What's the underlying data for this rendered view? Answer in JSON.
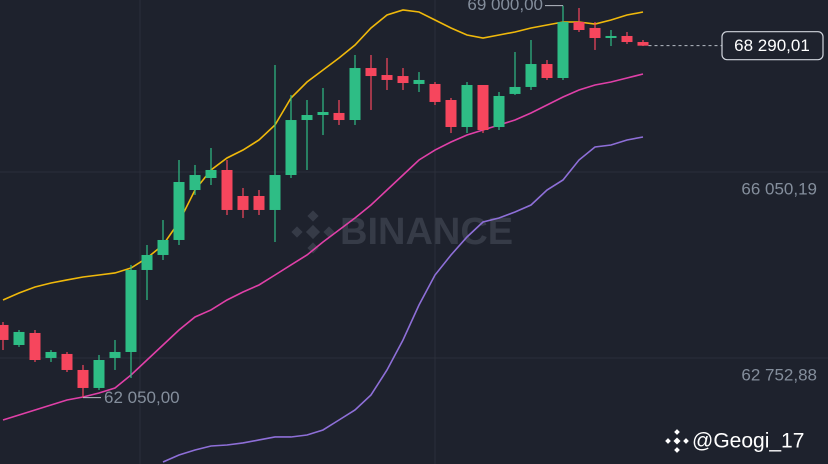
{
  "chart_data": {
    "type": "candlestick",
    "open": [
      63338,
      62983,
      63196,
      62753,
      62824,
      62540,
      62221,
      62753,
      62859,
      64313,
      64579,
      64845,
      65731,
      65944,
      66086,
      65625,
      65625,
      65377,
      65997,
      66972,
      67061,
      67097,
      66972,
      67894,
      67770,
      67752,
      67611,
      67611,
      67327,
      66848,
      67593,
      66848,
      67434,
      67558,
      67965,
      67717,
      68710,
      68604,
      68426,
      68462,
      68355
    ],
    "high": [
      63391,
      63249,
      63249,
      62894,
      62859,
      62629,
      62806,
      63072,
      64402,
      64756,
      65199,
      66263,
      66175,
      66476,
      66263,
      65767,
      65731,
      67948,
      67416,
      67327,
      67540,
      67327,
      68125,
      68125,
      68072,
      67894,
      67823,
      67646,
      67363,
      67646,
      67593,
      67469,
      68178,
      68391,
      68036,
      69000,
      68958,
      68710,
      68568,
      68533,
      68391
    ],
    "low": [
      62894,
      62948,
      62682,
      62682,
      62504,
      62050,
      62185,
      62540,
      62398,
      63781,
      64490,
      64756,
      65643,
      65820,
      65288,
      65235,
      65288,
      64809,
      65944,
      66086,
      66706,
      66884,
      66884,
      67150,
      67504,
      67504,
      67469,
      67238,
      66742,
      66742,
      66742,
      66795,
      67416,
      67504,
      67682,
      67682,
      68533,
      68214,
      68284,
      68320,
      68284
    ],
    "close": [
      63072,
      63214,
      62717,
      62859,
      62540,
      62221,
      62717,
      62859,
      64313,
      64579,
      64845,
      65873,
      65997,
      66086,
      65377,
      65377,
      65377,
      65997,
      66972,
      67061,
      67114,
      66972,
      67894,
      67752,
      67682,
      67628,
      67682,
      67292,
      66848,
      67593,
      66795,
      67398,
      67558,
      67965,
      67717,
      68710,
      68568,
      68426,
      68462,
      68355,
      68290.01
    ],
    "up_color": "#2ebd85",
    "down_color": "#f6465d",
    "lines": [
      {
        "color": "#f0b90b",
        "values": [
          63781,
          63905,
          64011,
          64082,
          64136,
          64189,
          64224,
          64260,
          64348,
          64526,
          64756,
          65164,
          65731,
          66086,
          66299,
          66440,
          66618,
          66884,
          67362,
          67646,
          67859,
          68072,
          68302,
          68604,
          68834,
          68923,
          68887,
          68745,
          68604,
          68479,
          68426,
          68479,
          68533,
          68604,
          68657,
          68710,
          68710,
          68674,
          68745,
          68834,
          68887
        ]
      },
      {
        "color": "#e040a8",
        "values": [
          61653,
          61742,
          61831,
          61919,
          62008,
          62061,
          62132,
          62221,
          62451,
          62717,
          62983,
          63249,
          63480,
          63604,
          63781,
          63923,
          64047,
          64224,
          64402,
          64579,
          64809,
          65022,
          65235,
          65465,
          65731,
          65997,
          66263,
          66440,
          66582,
          66706,
          66795,
          66884,
          66972,
          67097,
          67238,
          67380,
          67504,
          67593,
          67646,
          67717,
          67788
        ]
      },
      {
        "color": "#8e6fd8",
        "values": [
          null,
          null,
          null,
          null,
          null,
          null,
          null,
          null,
          null,
          null,
          60909,
          61033,
          61121,
          61192,
          61210,
          61246,
          61299,
          61352,
          61352,
          61387,
          61476,
          61653,
          61831,
          62097,
          62540,
          63072,
          63692,
          64224,
          64579,
          64898,
          65164,
          65235,
          65341,
          65465,
          65731,
          65909,
          66263,
          66494,
          66529,
          66618,
          66671
        ]
      }
    ],
    "ylim": [
      60873,
      69100
    ],
    "yticks": [
      {
        "value": 66050.19,
        "label": "66 050,19"
      },
      {
        "value": 62752.88,
        "label": "62 752,88"
      }
    ],
    "grid": true,
    "annotations": [
      {
        "candle": 35,
        "value": 69000,
        "label": "69 000,00",
        "side": "left"
      },
      {
        "candle": 5,
        "value": 62050,
        "label": "62 050,00",
        "side": "right"
      }
    ],
    "last_price": {
      "value": 68290.01,
      "label": "68 290,01"
    },
    "watermark": "BINANCE",
    "credit": "@Geogi_17"
  }
}
